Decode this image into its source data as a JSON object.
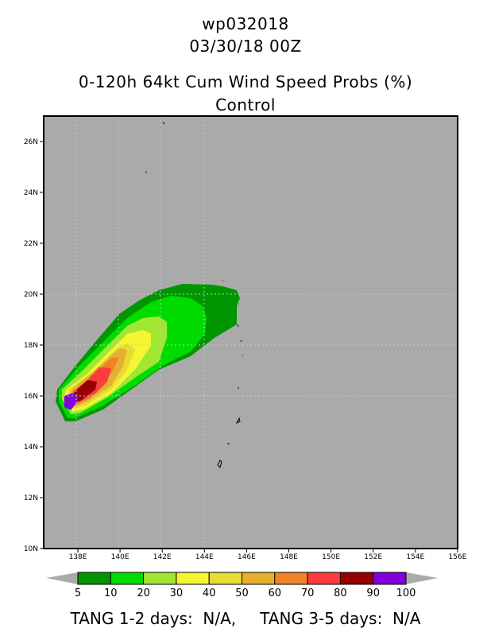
{
  "header": {
    "storm_id": "wp032018",
    "datetime": "03/30/18 00Z",
    "title": "0-120h 64kt Cum Wind Speed Probs (%)",
    "subtitle": "Control"
  },
  "map": {
    "lat_labels": [
      "10N",
      "12N",
      "14N",
      "16N",
      "18N",
      "20N",
      "22N",
      "24N",
      "26N"
    ],
    "lon_labels": [
      "138E",
      "140E",
      "142E",
      "144E",
      "146E",
      "148E",
      "150E",
      "152E",
      "154E",
      "156E"
    ],
    "background_color": "#aaaaaa"
  },
  "colorbar": {
    "levels": [
      "5",
      "10",
      "20",
      "30",
      "40",
      "50",
      "60",
      "70",
      "80",
      "90",
      "100"
    ],
    "colors": [
      "#009600",
      "#00dc00",
      "#a0e632",
      "#f5f532",
      "#e6dc32",
      "#e6af2d",
      "#f08228",
      "#fa3c3c",
      "#960000",
      "#8200dc"
    ]
  },
  "footer": {
    "left_label": "TANG 1-2 days:",
    "left_value": "N/A,",
    "right_label": "TANG 3-5 days:",
    "right_value": "N/A"
  }
}
